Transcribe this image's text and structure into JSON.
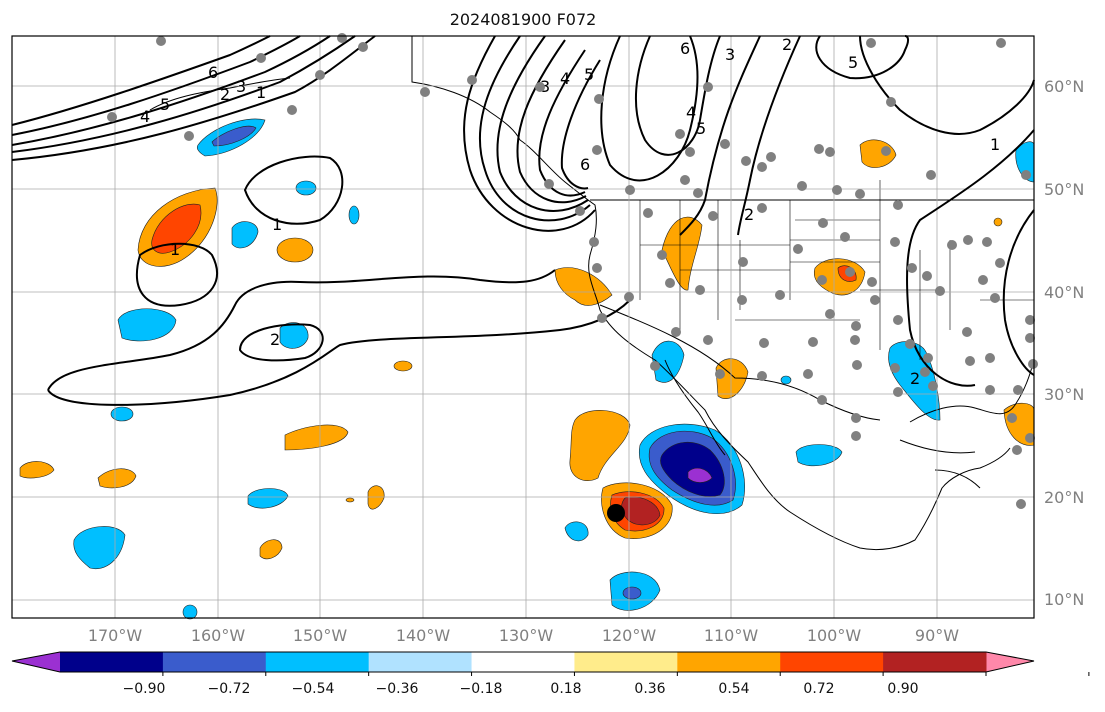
{
  "title": "2024081900 F072",
  "lat_labels": [
    "60°N",
    "50°N",
    "40°N",
    "30°N",
    "20°N",
    "10°N"
  ],
  "lon_labels": [
    "170°W",
    "160°W",
    "150°W",
    "140°W",
    "130°W",
    "120°W",
    "110°W",
    "100°W",
    "90°W"
  ],
  "contour_labels": {
    "c1": "1",
    "c2": "2",
    "c3": "3",
    "c4": "4",
    "c5": "5",
    "c6": "6"
  },
  "colorbar": {
    "tick_labels": [
      "−0.90",
      "−0.72",
      "−0.54",
      "−0.36",
      "−0.18",
      "0.18",
      "0.36",
      "0.54",
      "0.72",
      "0.90"
    ],
    "colors": [
      "#9b30d2",
      "#00008b",
      "#3a5ccc",
      "#00bfff",
      "#b0e2ff",
      "#ffffff",
      "#ffec8b",
      "#ffa500",
      "#ff4500",
      "#b22222",
      "#ff88aa"
    ]
  }
}
